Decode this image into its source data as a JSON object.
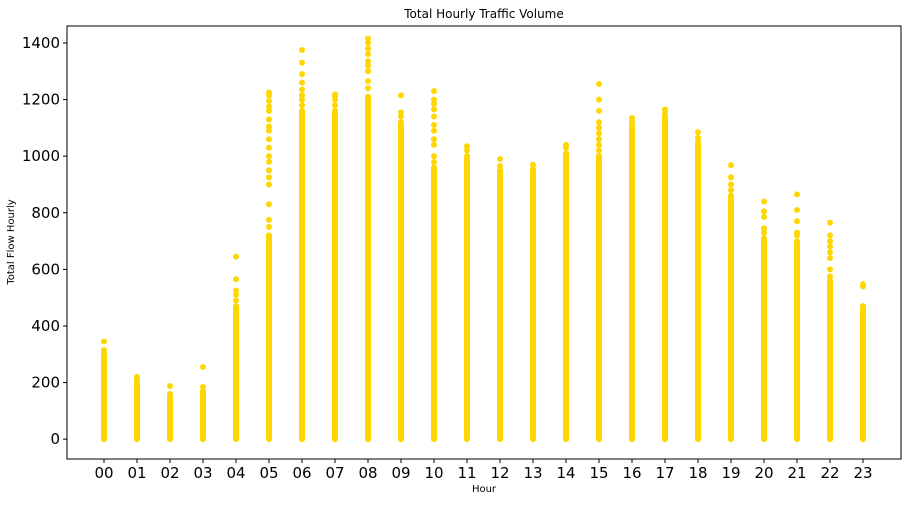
{
  "chart_data": {
    "type": "scatter",
    "title": "Total Hourly Traffic Volume",
    "xlabel": "Hour",
    "ylabel": "Total Flow Hourly",
    "categories": [
      "00",
      "01",
      "02",
      "03",
      "04",
      "05",
      "06",
      "07",
      "08",
      "09",
      "10",
      "11",
      "12",
      "13",
      "14",
      "15",
      "16",
      "17",
      "18",
      "19",
      "20",
      "21",
      "22",
      "23"
    ],
    "ylim": [
      -70,
      1460
    ],
    "yticks": [
      0,
      200,
      400,
      600,
      800,
      1000,
      1200,
      1400
    ],
    "grid": false,
    "legend": "none",
    "color": "#FFD700",
    "series": [
      {
        "points": [
          {
            "x": "00",
            "dense_max": 300,
            "outliers": [
              315,
              345
            ]
          },
          {
            "x": "01",
            "dense_max": 200,
            "outliers": [
              210,
              220
            ]
          },
          {
            "x": "02",
            "dense_max": 150,
            "outliers": [
              160,
              188
            ]
          },
          {
            "x": "03",
            "dense_max": 170,
            "outliers": [
              185,
              255
            ]
          },
          {
            "x": "04",
            "dense_max": 470,
            "outliers": [
              490,
              510,
              525,
              565,
              645
            ]
          },
          {
            "x": "05",
            "dense_max": 720,
            "outliers": [
              750,
              775,
              830,
              900,
              925,
              950,
              980,
              1000,
              1030,
              1060,
              1090,
              1105,
              1130,
              1160,
              1175,
              1195,
              1215,
              1225
            ]
          },
          {
            "x": "06",
            "dense_max": 1160,
            "outliers": [
              1180,
              1200,
              1215,
              1235,
              1260,
              1290,
              1330,
              1375
            ]
          },
          {
            "x": "07",
            "dense_max": 1160,
            "outliers": [
              1180,
              1200,
              1210,
              1218
            ]
          },
          {
            "x": "08",
            "dense_max": 1210,
            "outliers": [
              1240,
              1265,
              1300,
              1320,
              1335,
              1360,
              1380,
              1400,
              1415
            ]
          },
          {
            "x": "09",
            "dense_max": 1120,
            "outliers": [
              1140,
              1155,
              1215
            ]
          },
          {
            "x": "10",
            "dense_max": 960,
            "outliers": [
              980,
              1000,
              1040,
              1060,
              1090,
              1110,
              1140,
              1165,
              1185,
              1200,
              1230
            ]
          },
          {
            "x": "11",
            "dense_max": 1000,
            "outliers": [
              1020,
              1035
            ]
          },
          {
            "x": "12",
            "dense_max": 950,
            "outliers": [
              965,
              990
            ]
          },
          {
            "x": "13",
            "dense_max": 955,
            "outliers": [
              970
            ]
          },
          {
            "x": "14",
            "dense_max": 1010,
            "outliers": [
              1030,
              1040
            ]
          },
          {
            "x": "15",
            "dense_max": 1000,
            "outliers": [
              1020,
              1040,
              1060,
              1080,
              1100,
              1120,
              1160,
              1200,
              1255
            ]
          },
          {
            "x": "16",
            "dense_max": 1110,
            "outliers": [
              1125,
              1135
            ]
          },
          {
            "x": "17",
            "dense_max": 1140,
            "outliers": [
              1155,
              1165
            ]
          },
          {
            "x": "18",
            "dense_max": 1050,
            "outliers": [
              1065,
              1085
            ]
          },
          {
            "x": "19",
            "dense_max": 860,
            "outliers": [
              880,
              900,
              925,
              968
            ]
          },
          {
            "x": "20",
            "dense_max": 710,
            "outliers": [
              730,
              745,
              785,
              805,
              840
            ]
          },
          {
            "x": "21",
            "dense_max": 700,
            "outliers": [
              720,
              730,
              770,
              810,
              865
            ]
          },
          {
            "x": "22",
            "dense_max": 560,
            "outliers": [
              575,
              600,
              640,
              660,
              680,
              700,
              720,
              765
            ]
          },
          {
            "x": "23",
            "dense_max": 470,
            "outliers": [
              540,
              548
            ]
          }
        ]
      }
    ]
  }
}
